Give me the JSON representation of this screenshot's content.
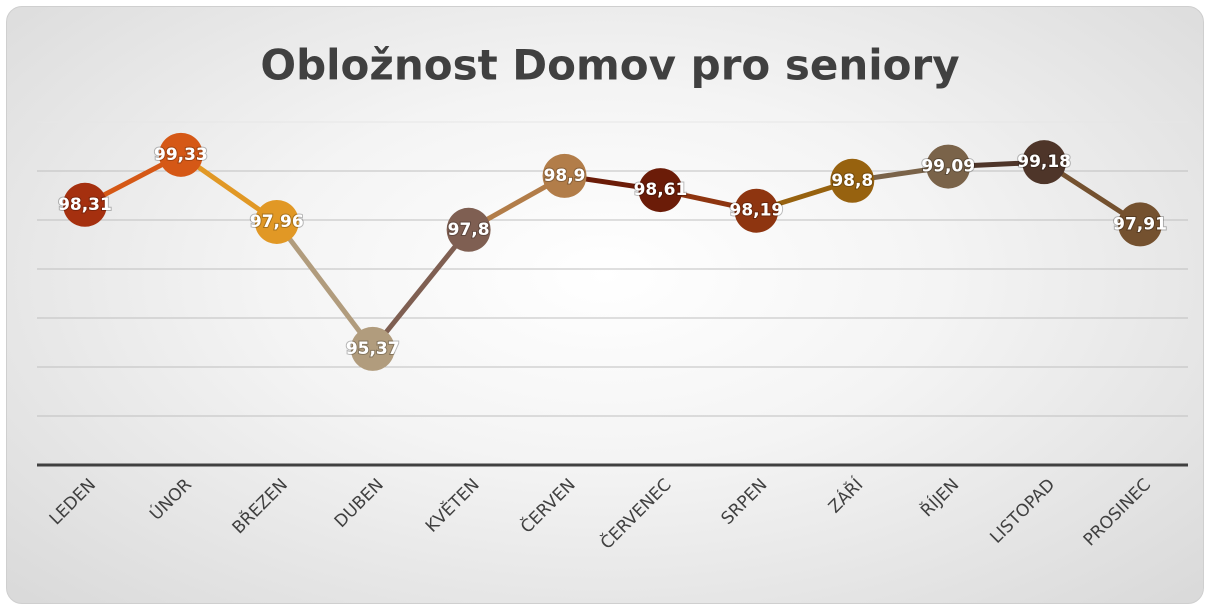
{
  "chart_data": {
    "type": "line",
    "title": "Obložnost Domov pro seniory",
    "categories": [
      "LEDEN",
      "ÚNOR",
      "BŘEZEN",
      "DUBEN",
      "KVĚTEN",
      "ČERVEN",
      "ČERVENEC",
      "SRPEN",
      "ZÁŘÍ",
      "ŘÍJEN",
      "LISTOPAD",
      "PROSINEC"
    ],
    "values": [
      98.31,
      99.33,
      97.96,
      95.37,
      97.8,
      98.9,
      98.61,
      98.19,
      98.8,
      99.09,
      99.18,
      97.91
    ],
    "value_labels": [
      "98,31",
      "99,33",
      "97,96",
      "95,37",
      "97,8",
      "98,9",
      "98,61",
      "98,19",
      "98,8",
      "99,09",
      "99,18",
      "97,91"
    ],
    "colors": [
      "#a5300f",
      "#d55816",
      "#e19825",
      "#b19c7d",
      "#7f5f52",
      "#b27d49",
      "#6b1c08",
      "#8e3510",
      "#97620f",
      "#7a6349",
      "#4e3529",
      "#74512f"
    ],
    "ylim": [
      93,
      100
    ],
    "yticks": [
      93,
      94,
      95,
      96,
      97,
      98,
      99,
      100
    ],
    "grid": true
  }
}
